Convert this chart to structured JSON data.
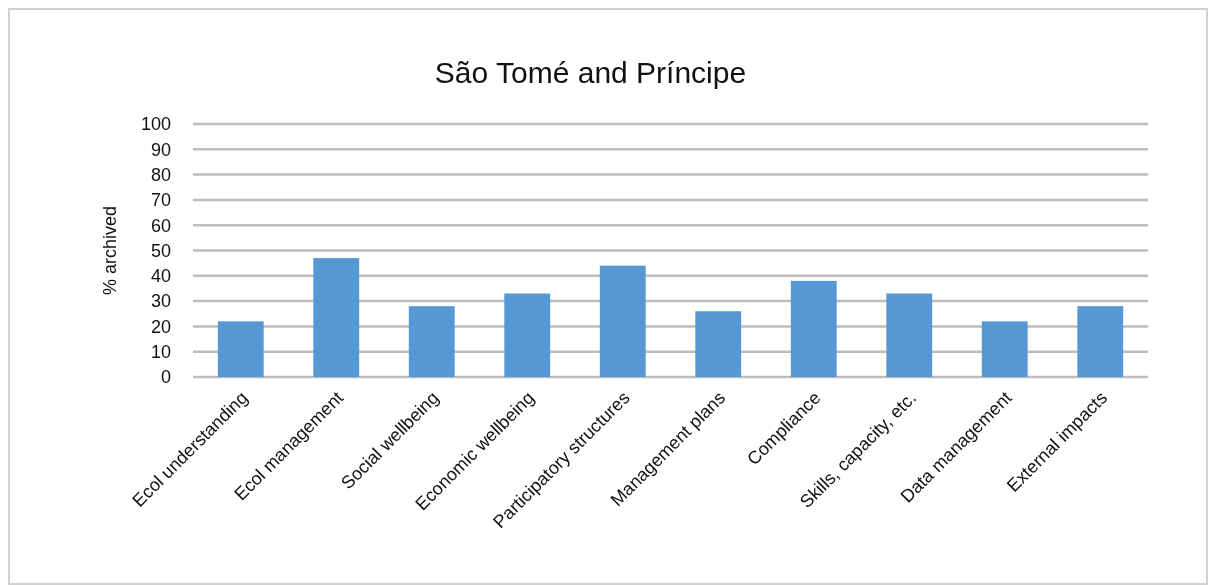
{
  "chart_data": {
    "type": "bar",
    "title": "São Tomé and Príncipe",
    "ylabel": "% archived",
    "categories": [
      "Ecol understanding",
      "Ecol management",
      "Social wellbeing",
      "Economic wellbeing",
      "Participatory structures",
      "Management plans",
      "Compliance",
      "Skills, capacity, etc.",
      "Data management",
      "External impacts"
    ],
    "values": [
      22,
      47,
      28,
      33,
      44,
      26,
      38,
      33,
      22,
      28
    ],
    "color": "#5698d3",
    "ylim": [
      0,
      100
    ],
    "yticks": [
      0,
      10,
      20,
      30,
      40,
      50,
      60,
      70,
      80,
      90,
      100
    ],
    "grid": "y"
  }
}
